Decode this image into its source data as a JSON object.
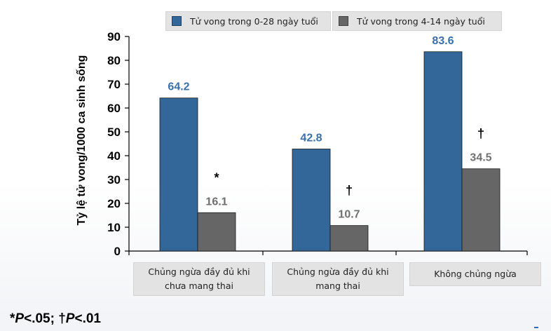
{
  "chart_data": {
    "type": "bar",
    "categories": [
      "Chủng ngừa đầy đủ khi chưa mang thai",
      "Chủng ngừa đầy đủ khi mang thai",
      "Không chủng ngừa"
    ],
    "series": [
      {
        "name": "Tử vong trong 0-28 ngày tuổi",
        "values": [
          64.2,
          42.8,
          83.6
        ],
        "color": "#336699"
      },
      {
        "name": "Tử vong trong 4-14 ngày tuổi",
        "values": [
          16.1,
          10.7,
          34.5
        ],
        "color": "#666666"
      }
    ],
    "significance_marks": [
      "*",
      "†",
      "†"
    ],
    "ylabel": "Tỷ lệ tử vong/1000 ca sinh sống",
    "ylim": [
      0,
      90
    ],
    "yticks": [
      0,
      10,
      20,
      30,
      40,
      50,
      60,
      70,
      80,
      90
    ],
    "legend_position": "top",
    "grid": false,
    "label_colors": {
      "series_0": "#3a6fa8",
      "series_1": "#707070"
    }
  },
  "footnote": {
    "mark1": "*",
    "p1": "P",
    "val1": "<.05; ",
    "mark2": "†",
    "p2": "P",
    "val2": "<.01"
  }
}
